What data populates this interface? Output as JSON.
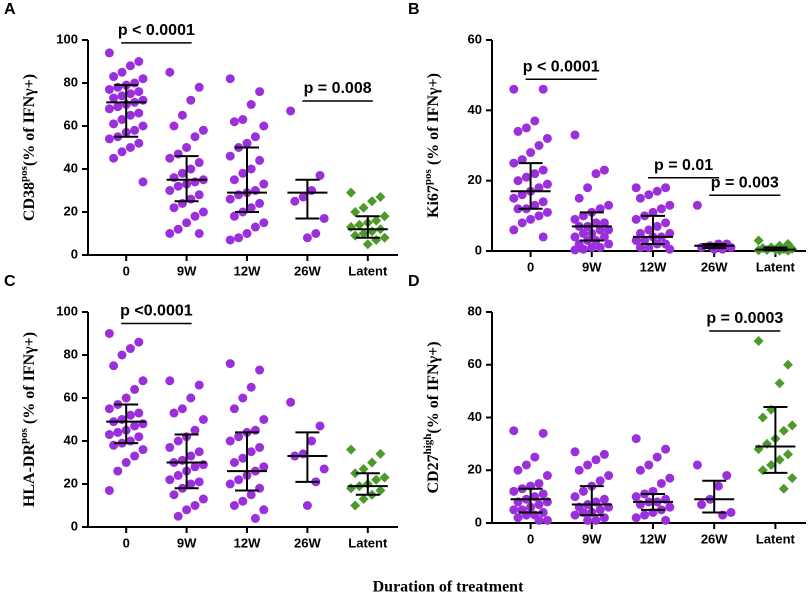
{
  "xlabel": "Duration of treatment",
  "chart_data": [
    {
      "type": "dotplot",
      "panel": "A",
      "ylabel": {
        "main": "CD38",
        "sup": "pos",
        "rest": "(% of IFNγ+)"
      },
      "categories": [
        "0",
        "9W",
        "12W",
        "26W",
        "Latent"
      ],
      "colors": [
        "#9b2fdc",
        "#9b2fdc",
        "#9b2fdc",
        "#9b2fdc",
        "#4c9a2a"
      ],
      "markers": [
        "circle",
        "circle",
        "circle",
        "circle",
        "diamond"
      ],
      "ylim": [
        0,
        100
      ],
      "yticks": [
        0,
        20,
        40,
        60,
        80,
        100
      ],
      "points": [
        [
          94,
          90,
          88,
          85,
          83,
          82,
          80,
          79,
          78,
          77,
          76,
          75,
          74,
          73,
          72,
          71,
          70,
          69,
          68,
          66,
          65,
          63,
          61,
          60,
          58,
          57,
          55,
          54,
          52,
          50,
          48,
          45,
          34
        ],
        [
          85,
          78,
          72,
          65,
          60,
          58,
          55,
          50,
          47,
          45,
          43,
          40,
          38,
          36,
          35,
          34,
          33,
          32,
          30,
          28,
          26,
          24,
          22,
          20,
          18,
          15,
          12,
          10,
          10
        ],
        [
          82,
          76,
          70,
          63,
          62,
          60,
          55,
          52,
          50,
          46,
          44,
          40,
          38,
          35,
          33,
          30,
          29,
          28,
          26,
          24,
          22,
          20,
          18,
          15,
          13,
          10,
          8,
          7
        ],
        [
          67,
          37,
          30,
          27,
          25,
          17,
          10,
          8
        ],
        [
          29,
          27,
          25,
          22,
          20,
          18,
          16,
          15,
          14,
          13,
          12,
          11,
          10,
          9,
          8,
          7,
          5
        ]
      ],
      "medians": [
        71,
        35,
        29,
        29,
        12
      ],
      "q1": [
        55,
        25,
        20,
        17,
        8
      ],
      "q3": [
        79,
        46,
        50,
        35,
        18
      ],
      "annotations": [
        {
          "text": "p < 0.0001",
          "between": [
            "0",
            "9W"
          ]
        },
        {
          "text": "p = 0.008",
          "between": [
            "26W",
            "Latent"
          ]
        }
      ]
    },
    {
      "type": "dotplot",
      "panel": "B",
      "ylabel": {
        "main": "Ki67",
        "sup": "pos",
        "rest": " (% of IFNγ+)"
      },
      "categories": [
        "0",
        "9W",
        "12W",
        "26W",
        "Latent"
      ],
      "colors": [
        "#9b2fdc",
        "#9b2fdc",
        "#9b2fdc",
        "#9b2fdc",
        "#4c9a2a"
      ],
      "markers": [
        "circle",
        "circle",
        "circle",
        "circle",
        "diamond"
      ],
      "ylim": [
        0,
        60
      ],
      "yticks": [
        0,
        20,
        40,
        60
      ],
      "points": [
        [
          46,
          46,
          37,
          35,
          34,
          32,
          30,
          28,
          26,
          25,
          23,
          22,
          21,
          20,
          19,
          18,
          17,
          16,
          15,
          14,
          13,
          12,
          12,
          11,
          10,
          9,
          8,
          6,
          4
        ],
        [
          33,
          23,
          22,
          18,
          15,
          13,
          12,
          11,
          10,
          9,
          8,
          8,
          7,
          7,
          6,
          6,
          5,
          5,
          4,
          4,
          3,
          3,
          2,
          2,
          1,
          1,
          0.5,
          0.3
        ],
        [
          18,
          18,
          17,
          16,
          15,
          13,
          12,
          11,
          10,
          9,
          8,
          7,
          6,
          5,
          5,
          4,
          4,
          3,
          3,
          2,
          2,
          1,
          1,
          0.5
        ],
        [
          13,
          2,
          2,
          1.5,
          1,
          1,
          0.5,
          0.5
        ],
        [
          3,
          2,
          1.5,
          1,
          0.8,
          0.6,
          0.5,
          0.4,
          0.3,
          0.2,
          0.1,
          0.1
        ]
      ],
      "medians": [
        17,
        7,
        4,
        1.5,
        0.4
      ],
      "q1": [
        12,
        3,
        2,
        0.8,
        0.2
      ],
      "q3": [
        25,
        11,
        10,
        2,
        1
      ],
      "annotations": [
        {
          "text": "p < 0.0001",
          "between": [
            "0",
            "9W"
          ]
        },
        {
          "text": "p = 0.01",
          "between": [
            "12W",
            "26W"
          ]
        },
        {
          "text": "p = 0.003",
          "between": [
            "26W",
            "Latent"
          ]
        }
      ]
    },
    {
      "type": "dotplot",
      "panel": "C",
      "ylabel": {
        "main": "HLA-DR",
        "sup": "pos",
        "rest": " (% of IFNγ+)"
      },
      "categories": [
        "0",
        "9W",
        "12W",
        "26W",
        "Latent"
      ],
      "colors": [
        "#9b2fdc",
        "#9b2fdc",
        "#9b2fdc",
        "#9b2fdc",
        "#4c9a2a"
      ],
      "markers": [
        "circle",
        "circle",
        "circle",
        "circle",
        "diamond"
      ],
      "ylim": [
        0,
        100
      ],
      "yticks": [
        0,
        20,
        40,
        60,
        80,
        100
      ],
      "points": [
        [
          90,
          86,
          83,
          80,
          75,
          68,
          64,
          60,
          57,
          55,
          53,
          52,
          50,
          49,
          48,
          47,
          45,
          44,
          43,
          42,
          40,
          39,
          38,
          36,
          33,
          30,
          26,
          17
        ],
        [
          68,
          66,
          60,
          55,
          53,
          50,
          45,
          42,
          40,
          37,
          35,
          33,
          31,
          30,
          29,
          28,
          26,
          24,
          22,
          21,
          20,
          18,
          15,
          13,
          10,
          8,
          5
        ],
        [
          76,
          73,
          65,
          60,
          55,
          50,
          45,
          44,
          42,
          40,
          37,
          35,
          32,
          30,
          28,
          26,
          24,
          22,
          20,
          18,
          15,
          12,
          10,
          8,
          4
        ],
        [
          58,
          47,
          40,
          34,
          33,
          27,
          21,
          10
        ],
        [
          36,
          34,
          30,
          27,
          25,
          23,
          22,
          20,
          19,
          18,
          17,
          15,
          13,
          10
        ]
      ],
      "medians": [
        49,
        30,
        26,
        33,
        19
      ],
      "q1": [
        39,
        18,
        17,
        21,
        15
      ],
      "q3": [
        57,
        43,
        44,
        44,
        25
      ],
      "annotations": [
        {
          "text": "p <0.0001",
          "between": [
            "0",
            "9W"
          ]
        }
      ]
    },
    {
      "type": "dotplot",
      "panel": "D",
      "ylabel": {
        "main": "CD27",
        "sup": "high",
        "rest": "(% of IFNγ+)"
      },
      "categories": [
        "0",
        "9W",
        "12W",
        "26W",
        "Latent"
      ],
      "colors": [
        "#9b2fdc",
        "#9b2fdc",
        "#9b2fdc",
        "#9b2fdc",
        "#4c9a2a"
      ],
      "markers": [
        "circle",
        "circle",
        "circle",
        "circle",
        "diamond"
      ],
      "ylim": [
        0,
        80
      ],
      "yticks": [
        0,
        20,
        40,
        60,
        80
      ],
      "points": [
        [
          35,
          34,
          25,
          22,
          20,
          18,
          15,
          14,
          13,
          12,
          11,
          10,
          9,
          8,
          8,
          7,
          6,
          5,
          5,
          4,
          3,
          3,
          2,
          1,
          1
        ],
        [
          27,
          26,
          24,
          22,
          20,
          18,
          16,
          14,
          12,
          10,
          9,
          8,
          7,
          6,
          6,
          5,
          4,
          4,
          3,
          2,
          1,
          1
        ],
        [
          32,
          28,
          25,
          22,
          20,
          17,
          15,
          12,
          11,
          10,
          9,
          8,
          8,
          7,
          6,
          5,
          4,
          3,
          2,
          1
        ],
        [
          22,
          18,
          14,
          9,
          7,
          4,
          3
        ],
        [
          69,
          60,
          53,
          43,
          40,
          37,
          35,
          32,
          30,
          28,
          26,
          24,
          22,
          20,
          17,
          13
        ]
      ],
      "medians": [
        9,
        7,
        8,
        9,
        29
      ],
      "q1": [
        4,
        3,
        5,
        4,
        19
      ],
      "q3": [
        13,
        14,
        11,
        16,
        44
      ],
      "annotations": [
        {
          "text": "p = 0.0003",
          "between": [
            "26W",
            "Latent"
          ]
        }
      ]
    }
  ]
}
